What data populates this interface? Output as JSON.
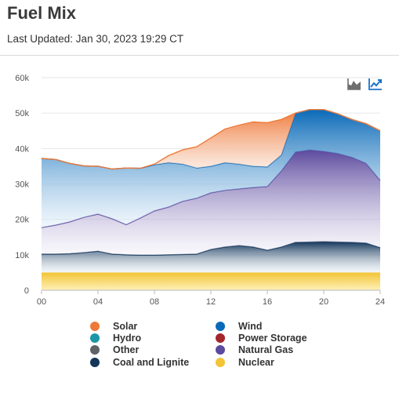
{
  "header": {
    "title": "Fuel Mix",
    "last_updated": "Last Updated: Jan 30, 2023 19:29 CT"
  },
  "toolbar": {
    "icons": [
      "area-chart-icon",
      "line-chart-icon"
    ],
    "active": "line-chart-icon"
  },
  "colors": {
    "solar": "#ee7a3a",
    "wind": "#0a6ab8",
    "hydro": "#1a97a8",
    "power_storage": "#a3262a",
    "other": "#5f6368",
    "natural_gas": "#5c4a9e",
    "coal": "#14365a",
    "nuclear": "#f2c436"
  },
  "legend": {
    "items": [
      {
        "label": "Solar",
        "color": "#ee7a3a"
      },
      {
        "label": "Wind",
        "color": "#0a6ab8"
      },
      {
        "label": "Hydro",
        "color": "#1a97a8"
      },
      {
        "label": "Power Storage",
        "color": "#a3262a"
      },
      {
        "label": "Other",
        "color": "#5f6368"
      },
      {
        "label": "Natural Gas",
        "color": "#5c4a9e"
      },
      {
        "label": "Coal and Lignite",
        "color": "#14365a"
      },
      {
        "label": "Nuclear",
        "color": "#f2c436"
      }
    ]
  },
  "chart_data": {
    "type": "area",
    "stacked": true,
    "x_label_ticks": [
      "00",
      "04",
      "08",
      "12",
      "16",
      "20",
      "24"
    ],
    "y_ticks": [
      "0",
      "10k",
      "20k",
      "30k",
      "40k",
      "50k",
      "60k"
    ],
    "xlim": [
      0,
      24
    ],
    "ylim": [
      0,
      60000
    ],
    "grid": true,
    "x": [
      0,
      1,
      2,
      3,
      4,
      5,
      6,
      7,
      8,
      9,
      10,
      11,
      12,
      13,
      14,
      15,
      16,
      17,
      18,
      19,
      20,
      21,
      22,
      23,
      24
    ],
    "series": [
      {
        "name": "Nuclear",
        "values": [
          5000,
          5000,
          5000,
          5000,
          5000,
          5000,
          5000,
          5000,
          5000,
          5000,
          5000,
          5000,
          5000,
          5000,
          5000,
          5000,
          5000,
          5000,
          5000,
          5000,
          5000,
          5000,
          5000,
          5000,
          5000
        ]
      },
      {
        "name": "Coal and Lignite",
        "values": [
          5200,
          5200,
          5300,
          5600,
          6000,
          5200,
          5000,
          4900,
          4900,
          5000,
          5100,
          5200,
          6500,
          7200,
          7600,
          7200,
          6300,
          7200,
          8500,
          8600,
          8700,
          8600,
          8500,
          8300,
          7000
        ]
      },
      {
        "name": "Natural Gas",
        "values": [
          7500,
          8200,
          9000,
          10000,
          10500,
          10000,
          8500,
          10500,
          12500,
          13500,
          15000,
          15800,
          16000,
          16000,
          16000,
          16800,
          18000,
          21500,
          25500,
          26000,
          25500,
          25000,
          24000,
          22500,
          19000
        ]
      },
      {
        "name": "Wind",
        "values": [
          19500,
          18500,
          16500,
          14500,
          13500,
          14000,
          16000,
          14000,
          13000,
          12500,
          10500,
          8500,
          7500,
          7800,
          7000,
          6000,
          5500,
          4500,
          11000,
          11400,
          11800,
          11200,
          10700,
          11200,
          14000
        ]
      },
      {
        "name": "Solar",
        "values": [
          0,
          0,
          0,
          0,
          0,
          0,
          0,
          0,
          200,
          2000,
          4000,
          6000,
          8000,
          9500,
          11000,
          12500,
          12500,
          10000,
          0,
          0,
          0,
          0,
          0,
          0,
          0
        ]
      }
    ]
  }
}
